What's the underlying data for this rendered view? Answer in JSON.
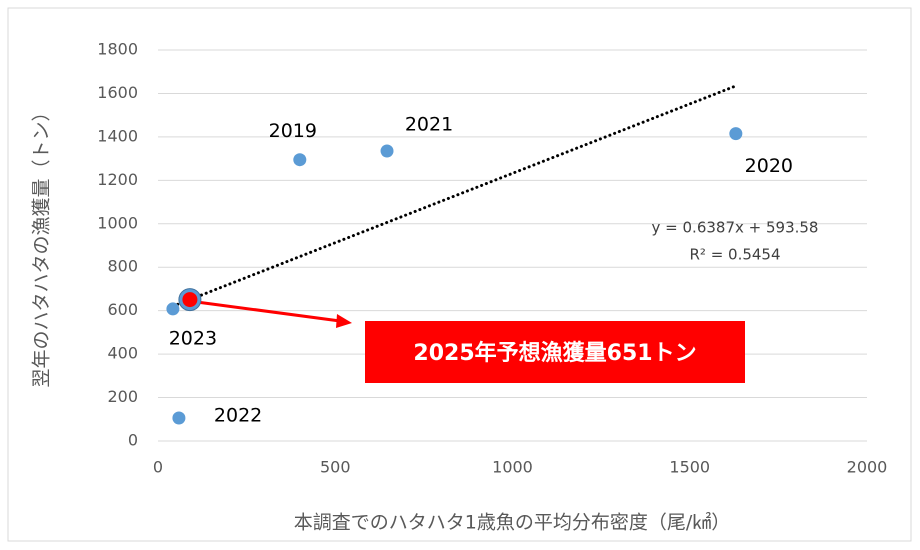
{
  "chart_data": {
    "type": "scatter",
    "x_label": "本調査でのハタハタ1歳魚の平均分布密度（尾/㎢）",
    "y_label": "翌年のハタハタの漁獲量（トン）",
    "series": [
      {
        "color": "#5b9bd5",
        "x": [
          400,
          1630,
          646,
          59,
          42
        ],
        "values": [
          1295,
          1415,
          1335,
          106,
          608
        ],
        "labels": [
          "2019",
          "2020",
          "2021",
          "2022",
          "2023"
        ]
      }
    ],
    "trendline": {
      "slope": 0.6387,
      "intercept": 593.58,
      "color": "#000000",
      "equation": "y = 0.6387x + 593.58",
      "r2": "R² = 0.5454"
    },
    "annotation": {
      "text": "2025年予想漁獲量651トン",
      "x": 90,
      "y": 651,
      "color": "#ff0000"
    },
    "xlim": [
      0,
      2000
    ],
    "xticks": [
      0,
      500,
      1000,
      1500,
      2000
    ],
    "ylim": [
      0,
      1800
    ],
    "yticks": [
      0,
      200,
      400,
      600,
      800,
      1000,
      1200,
      1400,
      1600,
      1800
    ],
    "grid": true
  }
}
